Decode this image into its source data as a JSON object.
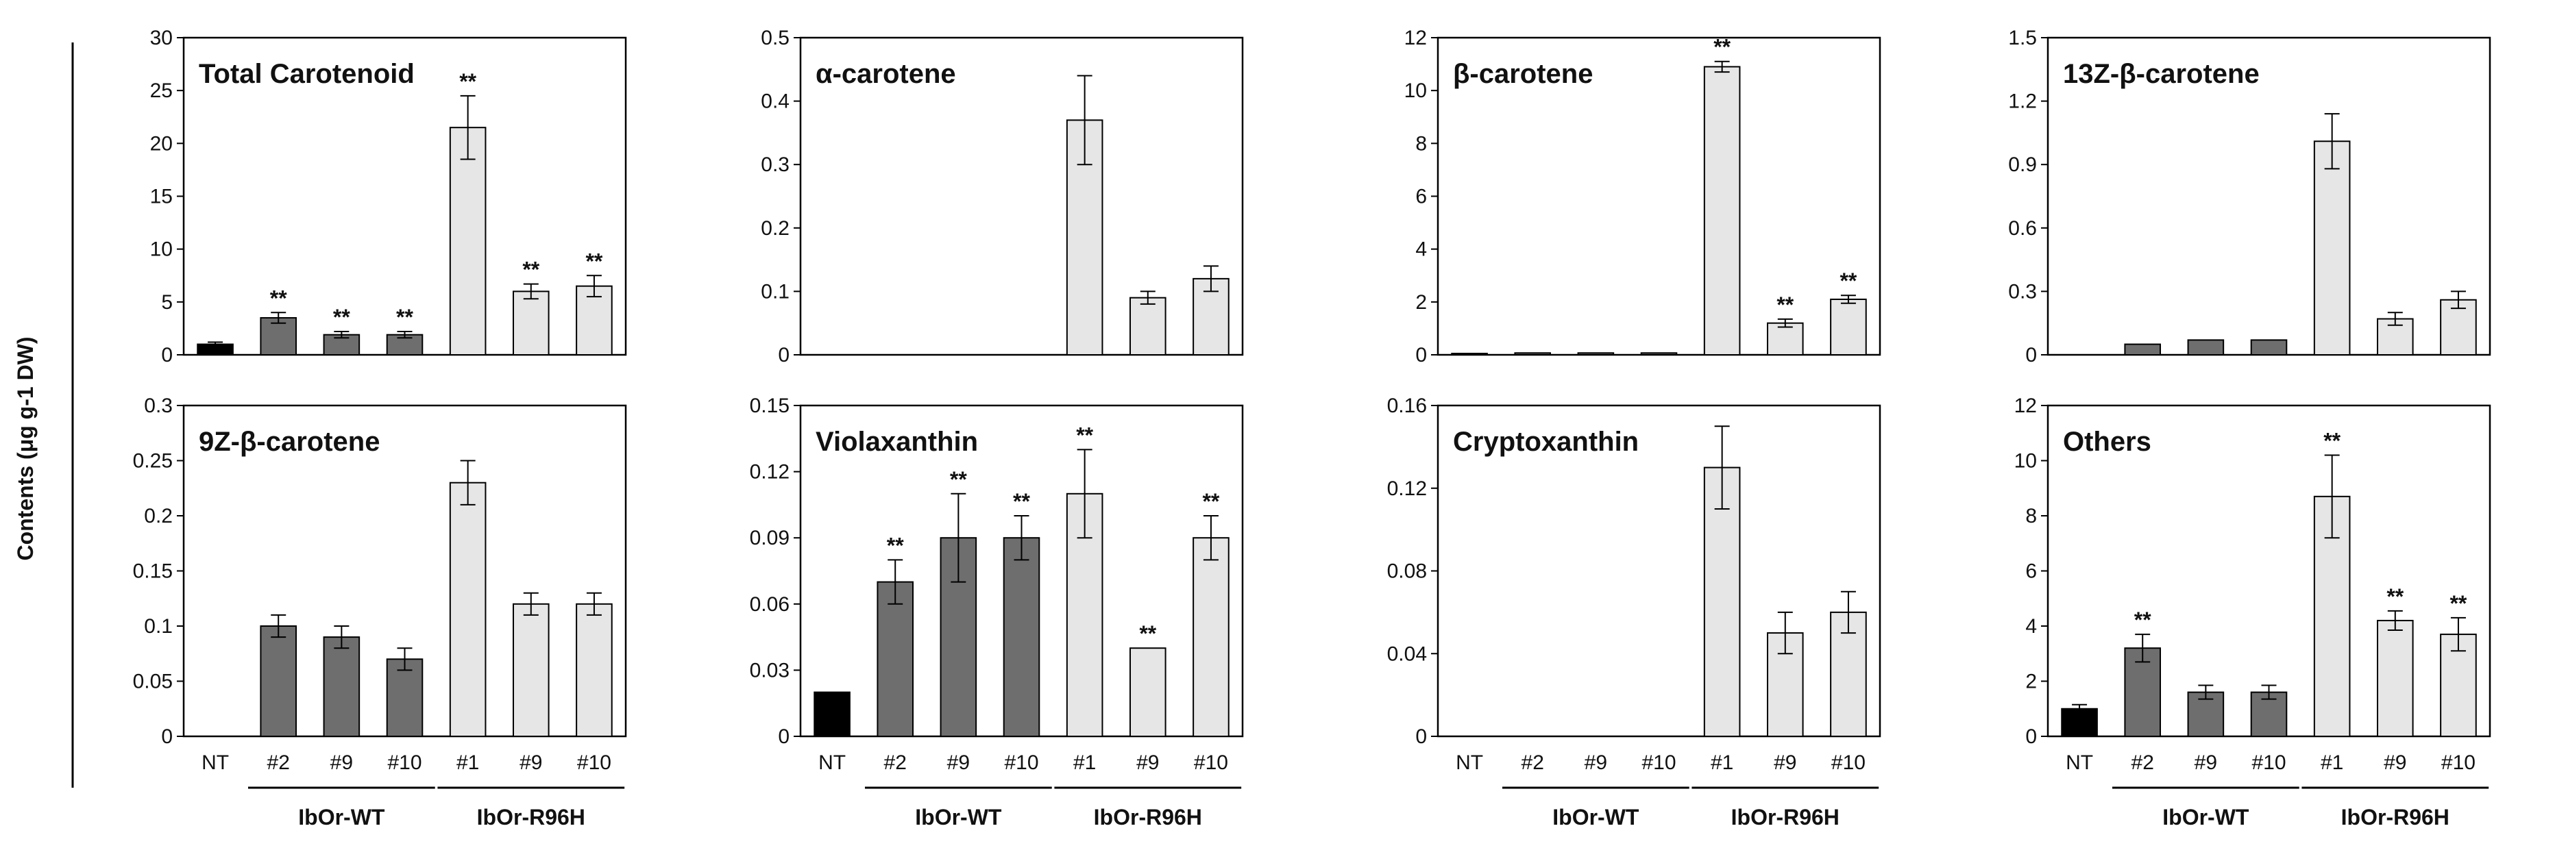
{
  "y_axis_label": "Contents (μg g-1 DW)",
  "colors": {
    "NT": "#000000",
    "IbOr-WT": "#6e6e6e",
    "IbOr-R96H": "#e6e6e6",
    "stroke": "#000000"
  },
  "chart_data": [
    {
      "type": "bar",
      "title": "Total Carotenoid",
      "categories": [
        "NT",
        "#2",
        "#9",
        "#10",
        "#1",
        "#9",
        "#10"
      ],
      "groups": [
        "NT",
        "IbOr-WT",
        "IbOr-WT",
        "IbOr-WT",
        "IbOr-R96H",
        "IbOr-R96H",
        "IbOr-R96H"
      ],
      "group_labels": [
        "IbOr-WT",
        "IbOr-R96H"
      ],
      "values": [
        1.0,
        3.5,
        1.9,
        1.9,
        21.5,
        6.0,
        6.5
      ],
      "errors": [
        0.2,
        0.5,
        0.3,
        0.3,
        3.0,
        0.7,
        1.0
      ],
      "significance": [
        "",
        "**",
        "**",
        "**",
        "**",
        "**",
        "**"
      ],
      "ylim": [
        0,
        30
      ],
      "yticks": [
        "0",
        "5",
        "10",
        "15",
        "20",
        "25",
        "30"
      ],
      "show_xticks": false
    },
    {
      "type": "bar",
      "title": "α-carotene",
      "categories": [
        "NT",
        "#2",
        "#9",
        "#10",
        "#1",
        "#9",
        "#10"
      ],
      "groups": [
        "NT",
        "IbOr-WT",
        "IbOr-WT",
        "IbOr-WT",
        "IbOr-R96H",
        "IbOr-R96H",
        "IbOr-R96H"
      ],
      "group_labels": [
        "IbOr-WT",
        "IbOr-R96H"
      ],
      "values": [
        0,
        0,
        0,
        0,
        0.37,
        0.09,
        0.12
      ],
      "errors": [
        0,
        0,
        0,
        0,
        0.07,
        0.01,
        0.02
      ],
      "significance": [
        "",
        "",
        "",
        "",
        "",
        "",
        ""
      ],
      "ylim": [
        0,
        0.5
      ],
      "yticks": [
        "0",
        "0.1",
        "0.2",
        "0.3",
        "0.4",
        "0.5"
      ],
      "show_xticks": false
    },
    {
      "type": "bar",
      "title": "β-carotene",
      "categories": [
        "NT",
        "#2",
        "#9",
        "#10",
        "#1",
        "#9",
        "#10"
      ],
      "groups": [
        "NT",
        "IbOr-WT",
        "IbOr-WT",
        "IbOr-WT",
        "IbOr-R96H",
        "IbOr-R96H",
        "IbOr-R96H"
      ],
      "group_labels": [
        "IbOr-WT",
        "IbOr-R96H"
      ],
      "values": [
        0.05,
        0.07,
        0.07,
        0.07,
        10.9,
        1.2,
        2.1
      ],
      "errors": [
        0,
        0,
        0,
        0,
        0.2,
        0.15,
        0.15
      ],
      "significance": [
        "",
        "",
        "",
        "",
        "**",
        "**",
        "**"
      ],
      "ylim": [
        0,
        12
      ],
      "yticks": [
        "0",
        "2",
        "4",
        "6",
        "8",
        "10",
        "12"
      ],
      "show_xticks": false
    },
    {
      "type": "bar",
      "title": "13Z-β-carotene",
      "categories": [
        "NT",
        "#2",
        "#9",
        "#10",
        "#1",
        "#9",
        "#10"
      ],
      "groups": [
        "NT",
        "IbOr-WT",
        "IbOr-WT",
        "IbOr-WT",
        "IbOr-R96H",
        "IbOr-R96H",
        "IbOr-R96H"
      ],
      "group_labels": [
        "IbOr-WT",
        "IbOr-R96H"
      ],
      "values": [
        0,
        0.05,
        0.07,
        0.07,
        1.01,
        0.17,
        0.26
      ],
      "errors": [
        0,
        0,
        0,
        0,
        0.13,
        0.03,
        0.04
      ],
      "significance": [
        "",
        "",
        "",
        "",
        "",
        "",
        ""
      ],
      "ylim": [
        0,
        1.5
      ],
      "yticks": [
        "0",
        "0.3",
        "0.6",
        "0.9",
        "1.2",
        "1.5"
      ],
      "show_xticks": false
    },
    {
      "type": "bar",
      "title": "9Z-β-carotene",
      "categories": [
        "NT",
        "#2",
        "#9",
        "#10",
        "#1",
        "#9",
        "#10"
      ],
      "groups": [
        "NT",
        "IbOr-WT",
        "IbOr-WT",
        "IbOr-WT",
        "IbOr-R96H",
        "IbOr-R96H",
        "IbOr-R96H"
      ],
      "group_labels": [
        "IbOr-WT",
        "IbOr-R96H"
      ],
      "values": [
        0,
        0.1,
        0.09,
        0.07,
        0.23,
        0.12,
        0.12
      ],
      "errors": [
        0,
        0.01,
        0.01,
        0.01,
        0.02,
        0.01,
        0.01
      ],
      "significance": [
        "",
        "",
        "",
        "",
        "",
        "",
        ""
      ],
      "ylim": [
        0,
        0.3
      ],
      "yticks": [
        "0",
        "0.05",
        "0.1",
        "0.15",
        "0.2",
        "0.25",
        "0.3"
      ],
      "show_xticks": true
    },
    {
      "type": "bar",
      "title": "Violaxanthin",
      "categories": [
        "NT",
        "#2",
        "#9",
        "#10",
        "#1",
        "#9",
        "#10"
      ],
      "groups": [
        "NT",
        "IbOr-WT",
        "IbOr-WT",
        "IbOr-WT",
        "IbOr-R96H",
        "IbOr-R96H",
        "IbOr-R96H"
      ],
      "group_labels": [
        "IbOr-WT",
        "IbOr-R96H"
      ],
      "values": [
        0.02,
        0.07,
        0.09,
        0.09,
        0.11,
        0.04,
        0.09
      ],
      "errors": [
        0,
        0.01,
        0.02,
        0.01,
        0.02,
        0,
        0.01
      ],
      "significance": [
        "",
        "**",
        "**",
        "**",
        "**",
        "**",
        "**"
      ],
      "ylim": [
        0,
        0.15
      ],
      "yticks": [
        "0",
        "0.03",
        "0.06",
        "0.09",
        "0.12",
        "0.15"
      ],
      "show_xticks": true
    },
    {
      "type": "bar",
      "title": "Cryptoxanthin",
      "categories": [
        "NT",
        "#2",
        "#9",
        "#10",
        "#1",
        "#9",
        "#10"
      ],
      "groups": [
        "NT",
        "IbOr-WT",
        "IbOr-WT",
        "IbOr-WT",
        "IbOr-R96H",
        "IbOr-R96H",
        "IbOr-R96H"
      ],
      "group_labels": [
        "IbOr-WT",
        "IbOr-R96H"
      ],
      "values": [
        0,
        0,
        0,
        0,
        0.13,
        0.05,
        0.06
      ],
      "errors": [
        0,
        0,
        0,
        0,
        0.02,
        0.01,
        0.01
      ],
      "significance": [
        "",
        "",
        "",
        "",
        "",
        "",
        ""
      ],
      "ylim": [
        0,
        0.16
      ],
      "yticks": [
        "0",
        "0.04",
        "0.08",
        "0.12",
        "0.16"
      ],
      "show_xticks": true
    },
    {
      "type": "bar",
      "title": "Others",
      "categories": [
        "NT",
        "#2",
        "#9",
        "#10",
        "#1",
        "#9",
        "#10"
      ],
      "groups": [
        "NT",
        "IbOr-WT",
        "IbOr-WT",
        "IbOr-WT",
        "IbOr-R96H",
        "IbOr-R96H",
        "IbOr-R96H"
      ],
      "group_labels": [
        "IbOr-WT",
        "IbOr-R96H"
      ],
      "values": [
        1.0,
        3.2,
        1.6,
        1.6,
        8.7,
        4.2,
        3.7
      ],
      "errors": [
        0.15,
        0.5,
        0.25,
        0.25,
        1.5,
        0.35,
        0.6
      ],
      "significance": [
        "",
        "**",
        "",
        "",
        "**",
        "**",
        "**"
      ],
      "ylim": [
        0,
        12
      ],
      "yticks": [
        "0",
        "2",
        "4",
        "6",
        "8",
        "10",
        "12"
      ],
      "show_xticks": true
    }
  ]
}
